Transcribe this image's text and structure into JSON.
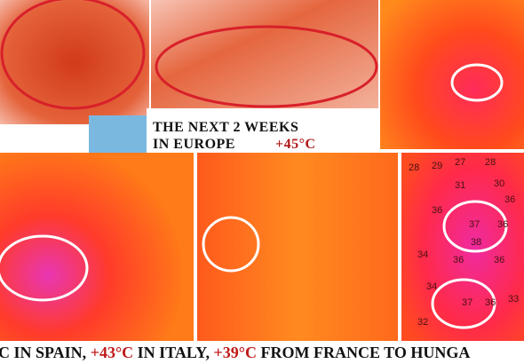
{
  "headline": {
    "line1": "THE NEXT 2 WEEKS",
    "line2": "IN EUROPE",
    "temp": "+45°C"
  },
  "caption": {
    "parts": [
      "C IN SPAIN, ",
      "+43°C",
      " IN ITALY, ",
      "+39°C",
      " FROM FRANCE TO HUNGA"
    ]
  },
  "hungary_map": {
    "labels": [
      "28",
      "29",
      "27",
      "28",
      "31",
      "30",
      "36",
      "37",
      "36",
      "38",
      "36",
      "34",
      "36",
      "36",
      "37",
      "36",
      "33",
      "34",
      "32"
    ]
  }
}
